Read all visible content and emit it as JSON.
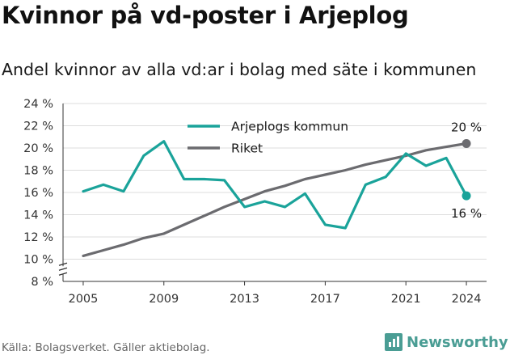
{
  "header": {
    "title": "Kvinnor på vd-poster i Arjeplog",
    "subtitle": "Andel kvinnor av alla vd:ar i bolag med säte i kommunen"
  },
  "footer": {
    "source": "Källa: Bolagsverket. Gäller aktiebolag.",
    "brand": "Newsworthy"
  },
  "colors": {
    "arjeplog": "#1aa39a",
    "riket": "#6b6b6f",
    "grid": "#dcdcdc",
    "brand": "#4a9d94"
  },
  "chart_data": {
    "type": "line",
    "title": "Kvinnor på vd-poster i Arjeplog",
    "subtitle": "Andel kvinnor av alla vd:ar i bolag med säte i kommunen",
    "xlabel": "",
    "ylabel": "",
    "x": [
      2005,
      2006,
      2007,
      2008,
      2009,
      2010,
      2011,
      2012,
      2013,
      2014,
      2015,
      2016,
      2017,
      2018,
      2019,
      2020,
      2021,
      2022,
      2023,
      2024
    ],
    "x_ticks": [
      "2005",
      "2009",
      "2013",
      "2017",
      "2021",
      "2024"
    ],
    "y_ticks": [
      "8 %",
      "10 %",
      "12 %",
      "14 %",
      "16 %",
      "18 %",
      "20 %",
      "22 %",
      "24 %"
    ],
    "ylim": [
      8,
      24
    ],
    "y_axis_break": true,
    "grid": true,
    "legend_position": "top-center",
    "series": [
      {
        "name": "Arjeplogs kommun",
        "values": [
          16.1,
          16.7,
          16.1,
          19.3,
          20.6,
          17.2,
          17.2,
          17.1,
          14.7,
          15.2,
          14.7,
          15.9,
          13.1,
          12.8,
          16.7,
          17.4,
          19.5,
          18.4,
          19.1,
          15.7
        ],
        "end_label": "16 %"
      },
      {
        "name": "Riket",
        "values": [
          10.3,
          10.8,
          11.3,
          11.9,
          12.3,
          13.1,
          13.9,
          14.7,
          15.4,
          16.1,
          16.6,
          17.2,
          17.6,
          18.0,
          18.5,
          18.9,
          19.3,
          19.8,
          20.1,
          20.4
        ],
        "end_label": "20 %"
      }
    ]
  }
}
